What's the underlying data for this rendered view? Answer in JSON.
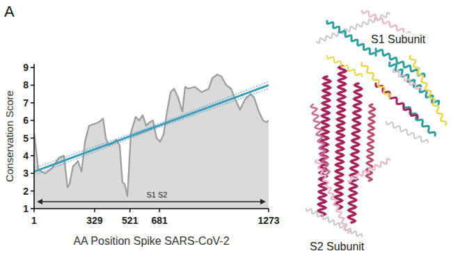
{
  "panel_label": "A",
  "structure_labels": [
    "S1 Subunit",
    "S2 Subunit"
  ],
  "chart_data": {
    "type": "area",
    "xlabel": "AA Position Spike SARS-CoV-2",
    "ylabel": "Conservation Score",
    "annotation": "S1 S2",
    "xlim": [
      1,
      1273
    ],
    "ylim": [
      1,
      9.2
    ],
    "xticks": [
      1,
      329,
      521,
      681,
      1273
    ],
    "yticks": [
      1,
      2,
      3,
      4,
      5,
      6,
      7,
      8,
      9
    ],
    "grid": false,
    "series": [
      {
        "type": "area",
        "color": "#d9d9d9",
        "x": [
          1,
          24,
          61,
          99,
          137,
          163,
          182,
          193,
          212,
          231,
          239,
          258,
          277,
          299,
          326,
          352,
          375,
          390,
          405,
          428,
          446,
          465,
          480,
          492,
          507,
          526,
          552,
          571,
          590,
          609,
          628,
          646,
          665,
          684,
          703,
          722,
          741,
          760,
          782,
          805,
          820,
          835,
          873,
          911,
          948,
          967,
          994,
          1017,
          1043,
          1069,
          1092,
          1118,
          1145,
          1175,
          1194,
          1220,
          1243,
          1262,
          1273
        ],
        "values": [
          5.3,
          3.2,
          3.0,
          3.3,
          3.9,
          4.0,
          2.2,
          2.4,
          3.4,
          3.6,
          3.7,
          3.1,
          4.8,
          5.7,
          5.8,
          5.9,
          6.1,
          5.0,
          4.6,
          4.7,
          4.9,
          4.6,
          2.5,
          2.4,
          1.7,
          5.3,
          6.2,
          6.0,
          6.3,
          5.7,
          5.9,
          6.0,
          5.0,
          4.8,
          5.2,
          6.5,
          7.6,
          7.8,
          7.3,
          6.5,
          7.9,
          7.8,
          7.9,
          7.6,
          7.8,
          8.4,
          8.6,
          8.5,
          8.0,
          7.8,
          7.2,
          6.6,
          7.2,
          7.5,
          7.3,
          6.5,
          6.0,
          5.9,
          6.0
        ]
      },
      {
        "type": "line",
        "color": "#3b9bb8",
        "line_style": "solid",
        "x": [
          1,
          1273
        ],
        "values": [
          3.1,
          8.0
        ]
      },
      {
        "type": "line",
        "color": "#3b9bb8",
        "line_style": "dotted",
        "x": [
          1,
          637,
          1273
        ],
        "values": [
          3.3,
          5.65,
          8.2
        ]
      },
      {
        "type": "line",
        "color": "#3b9bb8",
        "line_style": "dotted",
        "x": [
          1,
          637,
          1273
        ],
        "values": [
          2.9,
          5.45,
          7.8
        ]
      }
    ]
  }
}
